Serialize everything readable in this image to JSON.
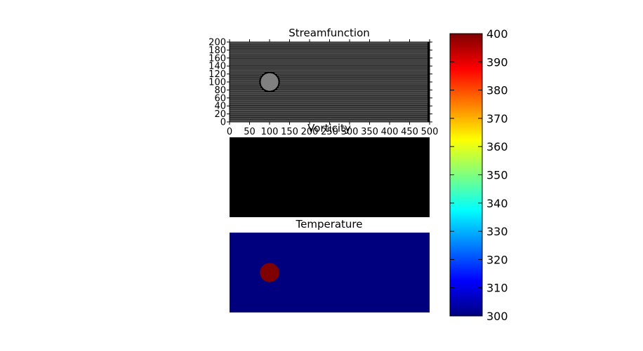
{
  "chart_data": [
    {
      "type": "heatmap",
      "title": "Streamfunction",
      "xlabel": "",
      "ylabel": "",
      "xlim": [
        0,
        500
      ],
      "ylim": [
        0,
        200
      ],
      "x_ticks": [
        "0",
        "50",
        "100",
        "150",
        "200",
        "250",
        "300",
        "350",
        "400",
        "450",
        "500"
      ],
      "y_ticks": [
        "0",
        "20",
        "40",
        "60",
        "80",
        "100",
        "120",
        "140",
        "160",
        "180",
        "200"
      ],
      "contour_levels_y": [
        2.5,
        7.5,
        12.5,
        17.5,
        22.5,
        27.5,
        32.5,
        37.5,
        42.5,
        47.5,
        52.5,
        57.5,
        62.5,
        67.5,
        72.5,
        77.5,
        82.5,
        87.5,
        92.5,
        97.5,
        102.5,
        107.5,
        112.5,
        117.5,
        122.5,
        127.5,
        132.5,
        137.5,
        142.5,
        147.5,
        152.5,
        157.5,
        162.5,
        167.5,
        172.5,
        177.5,
        182.5,
        187.5,
        192.5,
        197.5
      ],
      "obstacle": {
        "cx": 100,
        "cy": 100,
        "r": 24
      },
      "background_color": "#000000",
      "line_color": "#8a8a8a",
      "obstacle_color": "#808080"
    },
    {
      "type": "heatmap",
      "title": "Vorticity",
      "fill_color": "#000000",
      "xlim": [
        0,
        500
      ],
      "ylim": [
        0,
        200
      ]
    },
    {
      "type": "heatmap",
      "title": "Temperature",
      "colormap": "jet",
      "field_value": 300,
      "obstacle": {
        "cx": 100,
        "cy": 100,
        "r": 24,
        "value": 400
      },
      "field_color": "#00007f",
      "obstacle_color": "#7f0000",
      "xlim": [
        0,
        500
      ],
      "ylim": [
        0,
        200
      ]
    }
  ],
  "colorbar": {
    "min": 300,
    "max": 400,
    "ticks": [
      "300",
      "310",
      "320",
      "330",
      "340",
      "350",
      "360",
      "370",
      "380",
      "390",
      "400"
    ],
    "colormap": "jet",
    "stops": [
      "#00007f",
      "#0000ff",
      "#007fff",
      "#00ffff",
      "#7fff7f",
      "#ffff00",
      "#ff7f00",
      "#ff0000",
      "#7f0000"
    ]
  }
}
